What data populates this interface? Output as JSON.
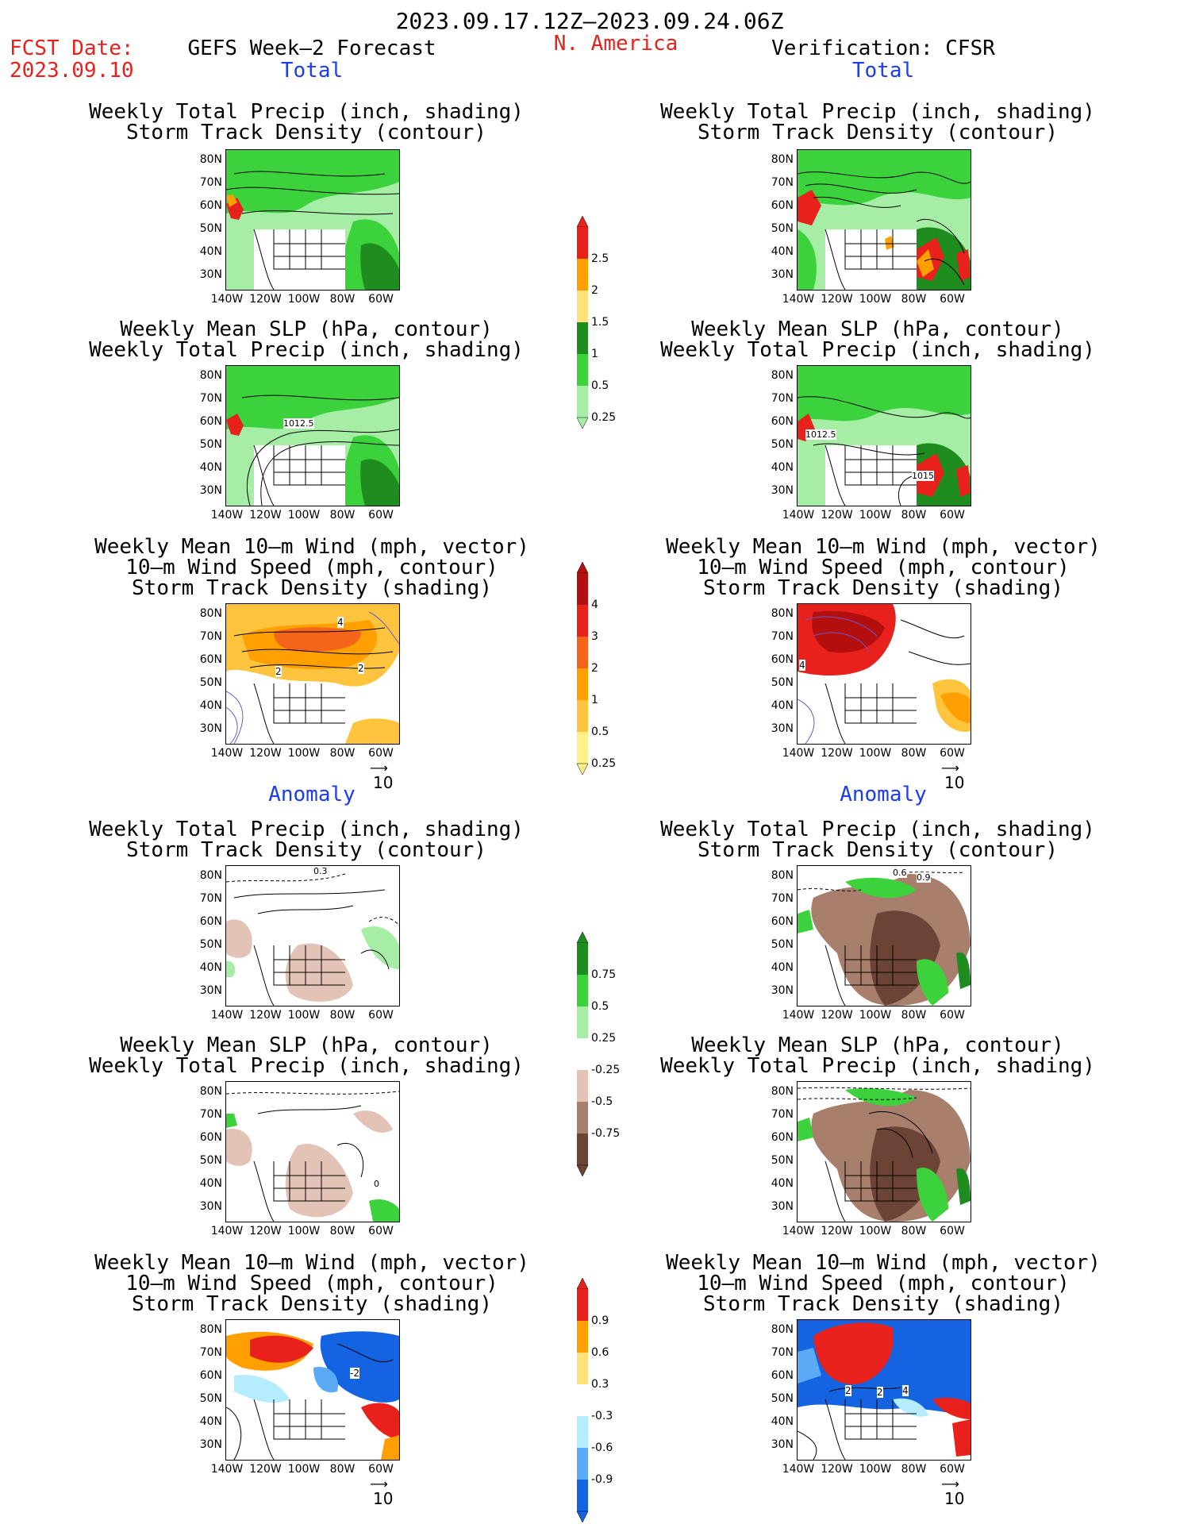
{
  "header": {
    "period": "2023.09.17.12Z–2023.09.24.06Z",
    "fcst_label": "FCST Date:",
    "fcst_date": "2023.09.10",
    "forecast_title": "GEFS Week–2 Forecast",
    "region": "N. America",
    "verification": "Verification: CFSR"
  },
  "sections": {
    "total": "Total",
    "anomaly": "Anomaly"
  },
  "panel_titles": {
    "precip_storm": [
      "Weekly Total Precip (inch, shading)",
      "Storm Track Density (contour)"
    ],
    "slp_precip": [
      "Weekly Mean SLP (hPa, contour)",
      "Weekly Total Precip (inch, shading)"
    ],
    "wind_storm": [
      "Weekly Mean 10–m Wind (mph, vector)",
      "10–m Wind Speed (mph, contour)",
      "Storm Track Density (shading)"
    ]
  },
  "axes": {
    "lat_labels": [
      "80N",
      "70N",
      "60N",
      "50N",
      "40N",
      "30N"
    ],
    "lon_labels": [
      "140W",
      "120W",
      "100W",
      "80W",
      "60W"
    ]
  },
  "vector_ref": "10",
  "contour_labels": {
    "slp_left": "1012.5",
    "slp_right_a": "1012.5",
    "slp_right_b": "1015",
    "wind_left_a": "2",
    "wind_left_b": "2",
    "wind_left_c": "4",
    "wind_right_a": "4",
    "anom_precip_left": "0.3",
    "anom_precip_right_a": "0.6",
    "anom_precip_right_b": "0.9",
    "anom_slp_left": "0",
    "anom_wind_left": "-2",
    "anom_wind_right_a": "2",
    "anom_wind_right_b": "4",
    "anom_wind_right_c": "2"
  },
  "colorbars": {
    "precip_total": {
      "labels": [
        "2.5",
        "2",
        "1.5",
        "1",
        "0.5",
        "0.25"
      ],
      "colors": [
        "#e8211c",
        "#ffa000",
        "#ffe37a",
        "#1f8c1f",
        "#3cd23c",
        "#a6eea6"
      ]
    },
    "storm_total": {
      "labels": [
        "4",
        "3",
        "2",
        "1",
        "0.5",
        "0.25"
      ],
      "colors": [
        "#b30f0f",
        "#e8211c",
        "#f5641a",
        "#ffa000",
        "#ffc43d",
        "#fff08a"
      ]
    },
    "precip_anom": {
      "labels": [
        "0.75",
        "0.5",
        "0.25",
        "-0.25",
        "-0.5",
        "-0.75"
      ],
      "colors": [
        "#1f8c1f",
        "#3cd23c",
        "#a6eea6",
        "#ffffff",
        "#e2c3b6",
        "#a87f6d",
        "#6b4436"
      ]
    },
    "storm_anom": {
      "labels": [
        "0.9",
        "0.6",
        "0.3",
        "-0.3",
        "-0.6",
        "-0.9"
      ],
      "colors": [
        "#e8211c",
        "#ffa000",
        "#ffe37a",
        "#ffffff",
        "#b5ecff",
        "#5aaaf5",
        "#1463e0"
      ]
    }
  },
  "colors": {
    "precip_light": "#a6eea6",
    "precip_mid": "#3cd23c",
    "precip_dark": "#1f8c1f",
    "precip_heavy": "#e8211c",
    "dry_light": "#e2c3b6",
    "dry_dark": "#6b4436",
    "storm_orange": "#ffa000",
    "storm_red": "#e8211c",
    "storm_dark": "#b30f0f",
    "neg_blue": "#1463e0",
    "light_blue": "#b5ecff"
  }
}
